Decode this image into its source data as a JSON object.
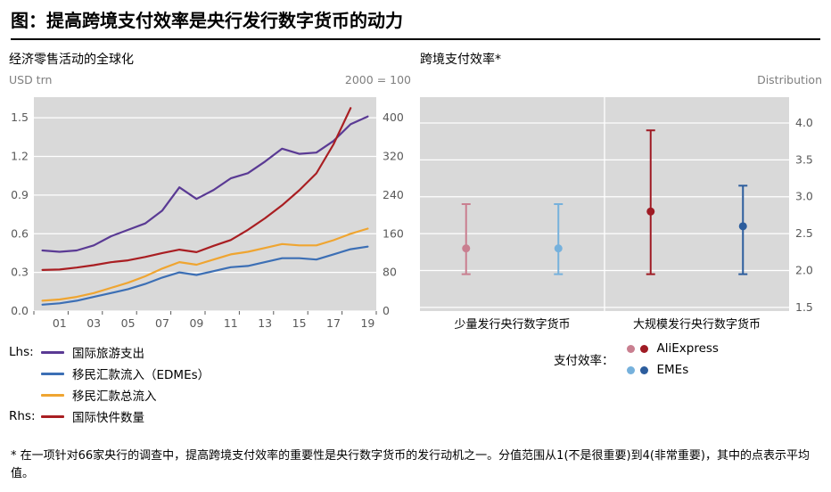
{
  "title": "图：提高跨境支付效率是央行发行数字货币的动力",
  "footnote": "* 在一项针对66家央行的调查中，提高跨境支付效率的重要性是央行数字货币的发行动机之一。分值范围从1(不是很重要)到4(非常重要)，其中的点表示平均值。",
  "colors": {
    "purple": "#5a3a94",
    "blue": "#3c6fb5",
    "orange": "#efa531",
    "red": "#a91e22",
    "pink": "#c97f90",
    "light_blue": "#76b1dc",
    "dark_red": "#9f1b24",
    "dark_blue": "#2c5d9d",
    "plot_bg": "#d9d9d9",
    "grid": "#ffffff",
    "axis_text": "#595959"
  },
  "left_panel": {
    "title": "经济零售活动的全球化",
    "unit_left": "USD trn",
    "unit_right": "2000 = 100",
    "legend": {
      "lhs_label": "Lhs:",
      "rhs_label": "Rhs:",
      "items": [
        {
          "label": "国际旅游支出",
          "color": "purple"
        },
        {
          "label": "移民汇款流入（EDMEs）",
          "color": "blue"
        },
        {
          "label": "移民汇款总流入",
          "color": "orange"
        },
        {
          "label": "国际快件数量",
          "color": "red"
        }
      ]
    }
  },
  "right_panel": {
    "title": "跨境支付效率*",
    "unit_right": "Distribution",
    "legend": {
      "label": "支付效率：",
      "items": [
        {
          "label": "AliExpress",
          "colors": [
            "pink",
            "dark_red"
          ]
        },
        {
          "label": "EMEs",
          "colors": [
            "light_blue",
            "dark_blue"
          ]
        }
      ]
    }
  },
  "chart_data": [
    {
      "type": "line",
      "title": "经济零售活动的全球化",
      "x_start": 2000,
      "x_labels": [
        "01",
        "03",
        "05",
        "07",
        "09",
        "11",
        "13",
        "15",
        "17",
        "19"
      ],
      "lhs": {
        "unit": "USD trn",
        "ticks": [
          0.0,
          0.3,
          0.6,
          0.9,
          1.2,
          1.5
        ],
        "display_max": 1.66
      },
      "rhs": {
        "unit": "2000 = 100",
        "ticks": [
          0,
          80,
          160,
          240,
          320,
          400
        ]
      },
      "series": [
        {
          "name": "国际旅游支出",
          "axis": "lhs",
          "color": "purple",
          "values": [
            0.47,
            0.46,
            0.47,
            0.51,
            0.58,
            0.63,
            0.68,
            0.78,
            0.96,
            0.87,
            0.94,
            1.03,
            1.07,
            1.16,
            1.26,
            1.22,
            1.23,
            1.32,
            1.45,
            1.51
          ]
        },
        {
          "name": "移民汇款流入（EDMEs）",
          "axis": "lhs",
          "color": "blue",
          "values": [
            0.05,
            0.06,
            0.08,
            0.11,
            0.14,
            0.17,
            0.21,
            0.26,
            0.3,
            0.28,
            0.31,
            0.34,
            0.35,
            0.38,
            0.41,
            0.41,
            0.4,
            0.44,
            0.48,
            0.5
          ]
        },
        {
          "name": "移民汇款总流入",
          "axis": "lhs",
          "color": "orange",
          "values": [
            0.08,
            0.09,
            0.11,
            0.14,
            0.18,
            0.22,
            0.27,
            0.33,
            0.38,
            0.36,
            0.4,
            0.44,
            0.46,
            0.49,
            0.52,
            0.51,
            0.51,
            0.55,
            0.6,
            0.64
          ]
        },
        {
          "name": "国际快件数量",
          "axis": "rhs",
          "color": "red",
          "values": [
            85,
            86,
            90,
            95,
            101,
            105,
            112,
            120,
            127,
            122,
            135,
            147,
            168,
            192,
            219,
            250,
            285,
            345,
            420
          ]
        }
      ]
    },
    {
      "type": "dot-range",
      "title": "跨境支付效率*",
      "unit": "Distribution",
      "y_ticks": [
        1.5,
        2.0,
        2.5,
        3.0,
        3.5,
        4.0
      ],
      "y_min": 1.45,
      "y_max": 4.35,
      "groups": [
        "少量发行央行数字货币",
        "大规模发行央行数字货币"
      ],
      "points": [
        {
          "group": 0,
          "series": "AliExpress",
          "color": "pink",
          "mean": 2.3,
          "low": 1.95,
          "high": 2.9
        },
        {
          "group": 0,
          "series": "EMEs",
          "color": "light_blue",
          "mean": 2.3,
          "low": 1.95,
          "high": 2.9
        },
        {
          "group": 1,
          "series": "AliExpress",
          "color": "dark_red",
          "mean": 2.8,
          "low": 1.95,
          "high": 3.9
        },
        {
          "group": 1,
          "series": "EMEs",
          "color": "dark_blue",
          "mean": 2.6,
          "low": 1.95,
          "high": 3.15
        }
      ]
    }
  ]
}
